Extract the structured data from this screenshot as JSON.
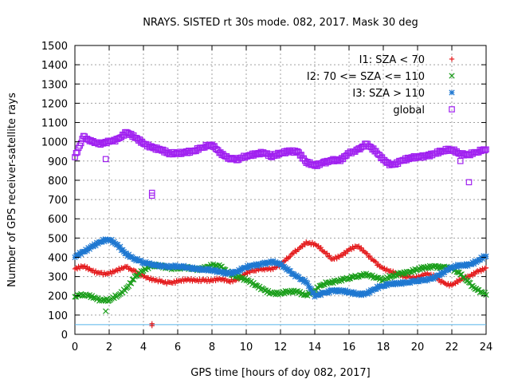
{
  "chart_data": {
    "type": "scatter",
    "title": "NRAYS. SISTED rt 30s mode. 082, 2017. Mask 30 deg",
    "xlabel": "GPS time [hours of doy 082, 2017]",
    "ylabel": "Number of GPS receiver-satellite rays",
    "xlim": [
      0,
      24
    ],
    "ylim": [
      0,
      1500
    ],
    "xticks": [
      "0",
      "2",
      "4",
      "6",
      "8",
      "10",
      "12",
      "14",
      "16",
      "18",
      "20",
      "22",
      "24"
    ],
    "yticks": [
      "0",
      "100",
      "200",
      "300",
      "400",
      "500",
      "600",
      "700",
      "800",
      "900",
      "1000",
      "1100",
      "1200",
      "1300",
      "1400",
      "1500"
    ],
    "grid": true,
    "legend_position": "top-right",
    "threshold_line": {
      "y": 50,
      "color": "#56b4e9"
    },
    "series": [
      {
        "name": "I1: SZA < 70",
        "marker": "+",
        "color": "#e41a1c",
        "x": [
          0,
          0.5,
          1,
          1.5,
          2,
          2.5,
          3,
          3.5,
          4,
          4.5,
          5,
          5.5,
          6,
          6.5,
          7,
          7.5,
          8,
          8.5,
          9,
          9.5,
          10,
          10.5,
          11,
          11.5,
          12,
          12.5,
          13,
          13.5,
          14,
          14.5,
          15,
          15.5,
          16,
          16.5,
          17,
          17.5,
          18,
          18.5,
          19,
          19.5,
          20,
          20.5,
          21,
          21.5,
          22,
          22.5,
          23,
          23.5,
          24
        ],
        "y": [
          340,
          350,
          330,
          320,
          315,
          330,
          350,
          330,
          300,
          280,
          275,
          270,
          275,
          280,
          280,
          285,
          280,
          285,
          275,
          290,
          320,
          330,
          340,
          345,
          360,
          400,
          440,
          480,
          470,
          430,
          390,
          410,
          440,
          455,
          420,
          380,
          340,
          320,
          305,
          300,
          295,
          310,
          300,
          270,
          255,
          280,
          300,
          330,
          345
        ]
      },
      {
        "name": "I2: 70 <= SZA <= 110",
        "marker": "x",
        "color": "#1a9e1a",
        "x": [
          0,
          0.5,
          1,
          1.5,
          2,
          2.5,
          3,
          3.5,
          4,
          4.5,
          5,
          5.5,
          6,
          6.5,
          7,
          7.5,
          8,
          8.5,
          9,
          9.5,
          10,
          10.5,
          11,
          11.5,
          12,
          12.5,
          13,
          13.5,
          14,
          14.5,
          15,
          15.5,
          16,
          16.5,
          17,
          17.5,
          18,
          18.5,
          19,
          19.5,
          20,
          20.5,
          21,
          21.5,
          22,
          22.5,
          23,
          23.5,
          24
        ],
        "y": [
          195,
          205,
          200,
          180,
          175,
          200,
          240,
          300,
          330,
          355,
          360,
          345,
          340,
          345,
          340,
          345,
          355,
          350,
          320,
          300,
          280,
          255,
          235,
          215,
          210,
          220,
          225,
          205,
          225,
          260,
          275,
          285,
          290,
          300,
          315,
          300,
          280,
          300,
          320,
          325,
          335,
          345,
          355,
          350,
          340,
          310,
          270,
          230,
          205
        ]
      },
      {
        "name": "I3: SZA > 110",
        "marker": "*",
        "color": "#1f78d1",
        "x": [
          0,
          0.5,
          1,
          1.5,
          2,
          2.5,
          3,
          3.5,
          4,
          4.5,
          5,
          5.5,
          6,
          6.5,
          7,
          7.5,
          8,
          8.5,
          9,
          9.5,
          10,
          10.5,
          11,
          11.5,
          12,
          12.5,
          13,
          13.5,
          14,
          14.5,
          15,
          15.5,
          16,
          16.5,
          17,
          17.5,
          18,
          18.5,
          19,
          19.5,
          20,
          20.5,
          21,
          21.5,
          22,
          22.5,
          23,
          23.5,
          24
        ],
        "y": [
          400,
          430,
          460,
          480,
          490,
          465,
          420,
          390,
          370,
          365,
          360,
          350,
          350,
          350,
          345,
          335,
          330,
          325,
          320,
          325,
          345,
          360,
          370,
          375,
          360,
          330,
          300,
          270,
          195,
          215,
          230,
          225,
          215,
          210,
          215,
          235,
          250,
          265,
          270,
          270,
          275,
          285,
          300,
          320,
          345,
          360,
          365,
          380,
          405
        ]
      },
      {
        "name": "global",
        "marker": "square",
        "color": "#a020f0",
        "x": [
          0,
          0.5,
          1,
          1.5,
          2,
          2.5,
          3,
          3.5,
          4,
          4.5,
          5,
          5.5,
          6,
          6.5,
          7,
          7.5,
          8,
          8.5,
          9,
          9.5,
          10,
          10.5,
          11,
          11.5,
          12,
          12.5,
          13,
          13.5,
          14,
          14.5,
          15,
          15.5,
          16,
          16.5,
          17,
          17.5,
          18,
          18.5,
          19,
          19.5,
          20,
          20.5,
          21,
          21.5,
          22,
          22.5,
          23,
          23.5,
          24
        ],
        "y": [
          920,
          1030,
          1000,
          985,
          1000,
          1015,
          1050,
          1020,
          990,
          975,
          960,
          935,
          940,
          950,
          955,
          970,
          985,
          945,
          915,
          905,
          925,
          940,
          945,
          920,
          940,
          955,
          950,
          890,
          875,
          895,
          905,
          900,
          940,
          960,
          990,
          950,
          905,
          880,
          900,
          910,
          920,
          930,
          940,
          950,
          960,
          940,
          935,
          945,
          960
        ]
      }
    ],
    "outliers": [
      {
        "series": "I1: SZA < 70",
        "x": 4.5,
        "y": 45
      },
      {
        "series": "I1: SZA < 70",
        "x": 4.5,
        "y": 55
      },
      {
        "series": "I2: 70 <= SZA <= 110",
        "x": 1.8,
        "y": 120
      },
      {
        "series": "global",
        "x": 1.8,
        "y": 910
      },
      {
        "series": "global",
        "x": 4.5,
        "y": 720
      },
      {
        "series": "global",
        "x": 4.5,
        "y": 735
      },
      {
        "series": "global",
        "x": 23,
        "y": 790
      },
      {
        "series": "global",
        "x": 22.5,
        "y": 900
      }
    ]
  }
}
